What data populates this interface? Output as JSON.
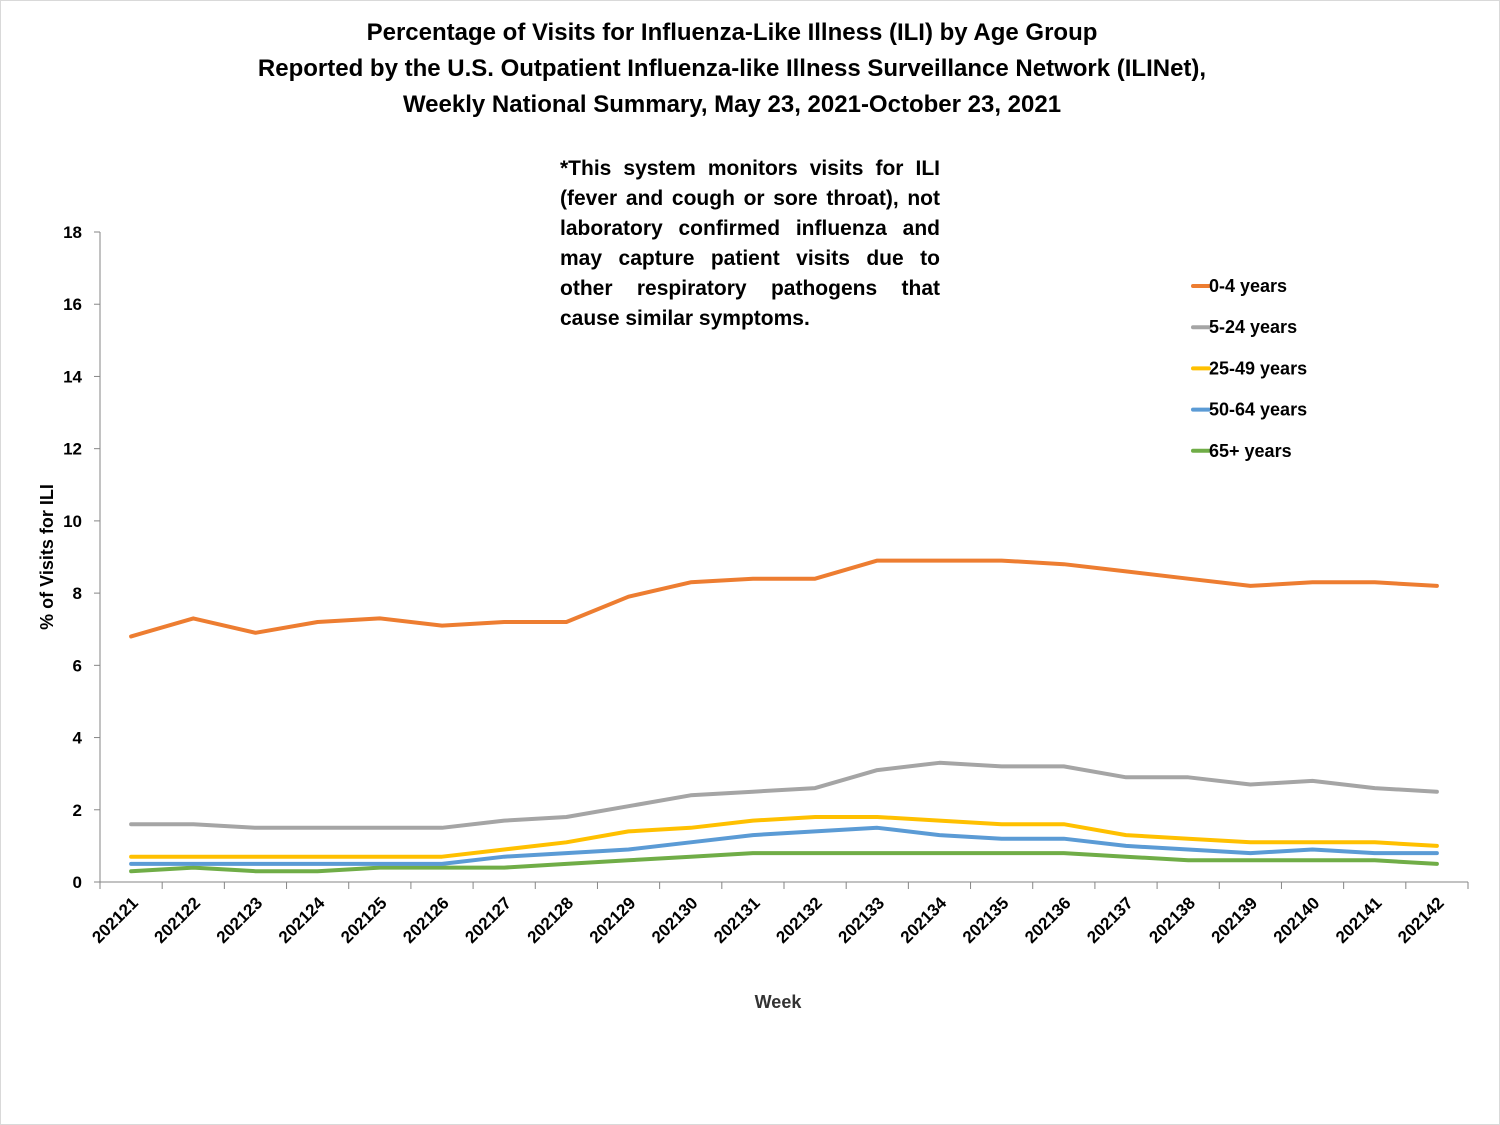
{
  "titles": {
    "line1": "Percentage of Visits for Influenza-Like Illness (ILI) by Age Group",
    "line2": "Reported by the U.S. Outpatient Influenza-like Illness Surveillance Network (ILINet),",
    "line3": "Weekly National Summary, May 23, 2021-October 23, 2021"
  },
  "note": "*This system monitors visits for ILI (fever and cough or sore throat), not laboratory confirmed influenza and may capture patient visits due to other respiratory pathogens that cause similar symptoms.",
  "chart_data": {
    "type": "line",
    "title": "Percentage of Visits for Influenza-Like Illness (ILI) by Age Group",
    "xlabel": "Week",
    "ylabel": "% of Visits for ILI",
    "ylim": [
      0,
      18
    ],
    "yticks": [
      0,
      2,
      4,
      6,
      8,
      10,
      12,
      14,
      16,
      18
    ],
    "grid": false,
    "legend_position": "right",
    "categories": [
      "202121",
      "202122",
      "202123",
      "202124",
      "202125",
      "202126",
      "202127",
      "202128",
      "202129",
      "202130",
      "202131",
      "202132",
      "202133",
      "202134",
      "202135",
      "202136",
      "202137",
      "202138",
      "202139",
      "202140",
      "202141",
      "202142"
    ],
    "series": [
      {
        "name": "0-4 years",
        "color": "#ed7d31",
        "values": [
          6.8,
          7.3,
          6.9,
          7.2,
          7.3,
          7.1,
          7.2,
          7.2,
          7.9,
          8.3,
          8.4,
          8.4,
          8.9,
          8.9,
          8.9,
          8.8,
          8.6,
          8.4,
          8.2,
          8.3,
          8.3,
          8.2
        ]
      },
      {
        "name": "5-24 years",
        "color": "#a5a5a5",
        "values": [
          1.6,
          1.6,
          1.5,
          1.5,
          1.5,
          1.5,
          1.7,
          1.8,
          2.1,
          2.4,
          2.5,
          2.6,
          3.1,
          3.3,
          3.2,
          3.2,
          2.9,
          2.9,
          2.7,
          2.8,
          2.6,
          2.5
        ]
      },
      {
        "name": "25-49 years",
        "color": "#ffc000",
        "values": [
          0.7,
          0.7,
          0.7,
          0.7,
          0.7,
          0.7,
          0.9,
          1.1,
          1.4,
          1.5,
          1.7,
          1.8,
          1.8,
          1.7,
          1.6,
          1.6,
          1.3,
          1.2,
          1.1,
          1.1,
          1.1,
          1.0
        ]
      },
      {
        "name": "50-64 years",
        "color": "#5b9bd5",
        "values": [
          0.5,
          0.5,
          0.5,
          0.5,
          0.5,
          0.5,
          0.7,
          0.8,
          0.9,
          1.1,
          1.3,
          1.4,
          1.5,
          1.3,
          1.2,
          1.2,
          1.0,
          0.9,
          0.8,
          0.9,
          0.8,
          0.8
        ]
      },
      {
        "name": "65+ years",
        "color": "#70ad47",
        "values": [
          0.3,
          0.4,
          0.3,
          0.3,
          0.4,
          0.4,
          0.4,
          0.5,
          0.6,
          0.7,
          0.8,
          0.8,
          0.8,
          0.8,
          0.8,
          0.8,
          0.7,
          0.6,
          0.6,
          0.6,
          0.6,
          0.5
        ]
      }
    ]
  }
}
